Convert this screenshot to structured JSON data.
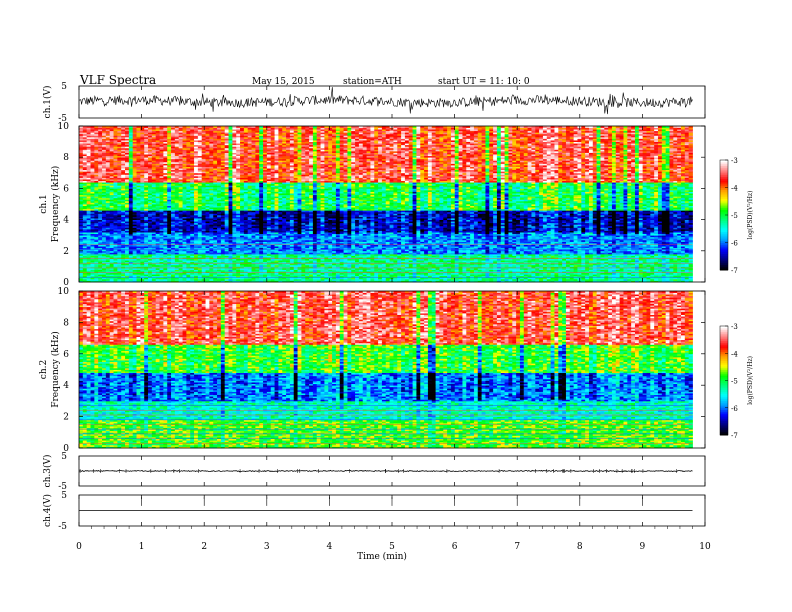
{
  "header": {
    "title": "VLF  Spectra",
    "date": "May 15, 2015",
    "station": "station=ATH",
    "start": "start  UT  =   11: 10: 0"
  },
  "chart_data": [
    {
      "type": "line",
      "name": "ch1-waveform",
      "ylabel": "ch.1(V)",
      "ylim": [
        -5,
        5
      ],
      "yticks": [
        "5",
        "-5"
      ],
      "baseline": 0.2,
      "amplitude": 0.5
    },
    {
      "type": "heatmap",
      "name": "ch1-spectrogram",
      "ylabel": "ch.1\nFrequency  (kHz)",
      "ylabel_lines": [
        "ch.1",
        "Frequency  (kHz)"
      ],
      "ylim": [
        0,
        10
      ],
      "yticks": [
        "0",
        "2",
        "4",
        "6",
        "8",
        "10"
      ],
      "xlim": [
        0,
        10
      ],
      "data_end_min": 9.8,
      "colorbar": {
        "label": "log(PSD)(V²/Hz)",
        "ticks": [
          "-3",
          "-4",
          "-5",
          "-6",
          "-7"
        ],
        "range": [
          -7,
          -3
        ]
      },
      "bands_khz": [
        {
          "from": 0,
          "to": 1.8,
          "level": -5.2
        },
        {
          "from": 1.8,
          "to": 3.2,
          "level": -5.9
        },
        {
          "from": 3.2,
          "to": 4.6,
          "level": -6.4
        },
        {
          "from": 4.6,
          "to": 6.4,
          "level": -5.0
        },
        {
          "from": 6.4,
          "to": 10,
          "level": -3.6
        }
      ]
    },
    {
      "type": "heatmap",
      "name": "ch2-spectrogram",
      "ylabel": "ch.2\nFrequency  (kHz)",
      "ylabel_lines": [
        "ch.2",
        "Frequency  (kHz)"
      ],
      "ylim": [
        0,
        10
      ],
      "yticks": [
        "0",
        "2",
        "4",
        "6",
        "8",
        "10"
      ],
      "xlim": [
        0,
        10
      ],
      "data_end_min": 9.8,
      "colorbar": {
        "label": "log(PSD)(V²/Hz)",
        "ticks": [
          "-3",
          "-4",
          "-5",
          "-6",
          "-7"
        ],
        "range": [
          -7,
          -3
        ]
      },
      "bands_khz": [
        {
          "from": 0,
          "to": 1.8,
          "level": -4.8
        },
        {
          "from": 1.8,
          "to": 3.0,
          "level": -5.4
        },
        {
          "from": 3.0,
          "to": 4.8,
          "level": -6.0
        },
        {
          "from": 4.8,
          "to": 6.6,
          "level": -4.9
        },
        {
          "from": 6.6,
          "to": 10,
          "level": -3.6
        }
      ]
    },
    {
      "type": "line",
      "name": "ch3-waveform",
      "ylabel": "ch.3(V)",
      "ylim": [
        -5,
        5
      ],
      "yticks": [
        "5",
        "-5"
      ],
      "baseline": 0.0,
      "amplitude": 0.05
    },
    {
      "type": "line",
      "name": "ch4-waveform",
      "ylabel": "ch.4(V)",
      "ylim": [
        -5,
        5
      ],
      "yticks": [
        "5",
        "-5"
      ],
      "baseline": 0.0,
      "amplitude": 0.0
    }
  ],
  "xaxis": {
    "label": "Time  (min)",
    "xlim": [
      0,
      10
    ],
    "ticks": [
      "0",
      "1",
      "2",
      "3",
      "4",
      "5",
      "6",
      "7",
      "8",
      "9",
      "10"
    ]
  },
  "colors": {
    "cmap": [
      "#000000",
      "#000080",
      "#0000ff",
      "#00a0ff",
      "#00ffff",
      "#00ff80",
      "#00ff00",
      "#ffff00",
      "#ffa000",
      "#ff0000",
      "#ff8080",
      "#ffffff"
    ]
  }
}
